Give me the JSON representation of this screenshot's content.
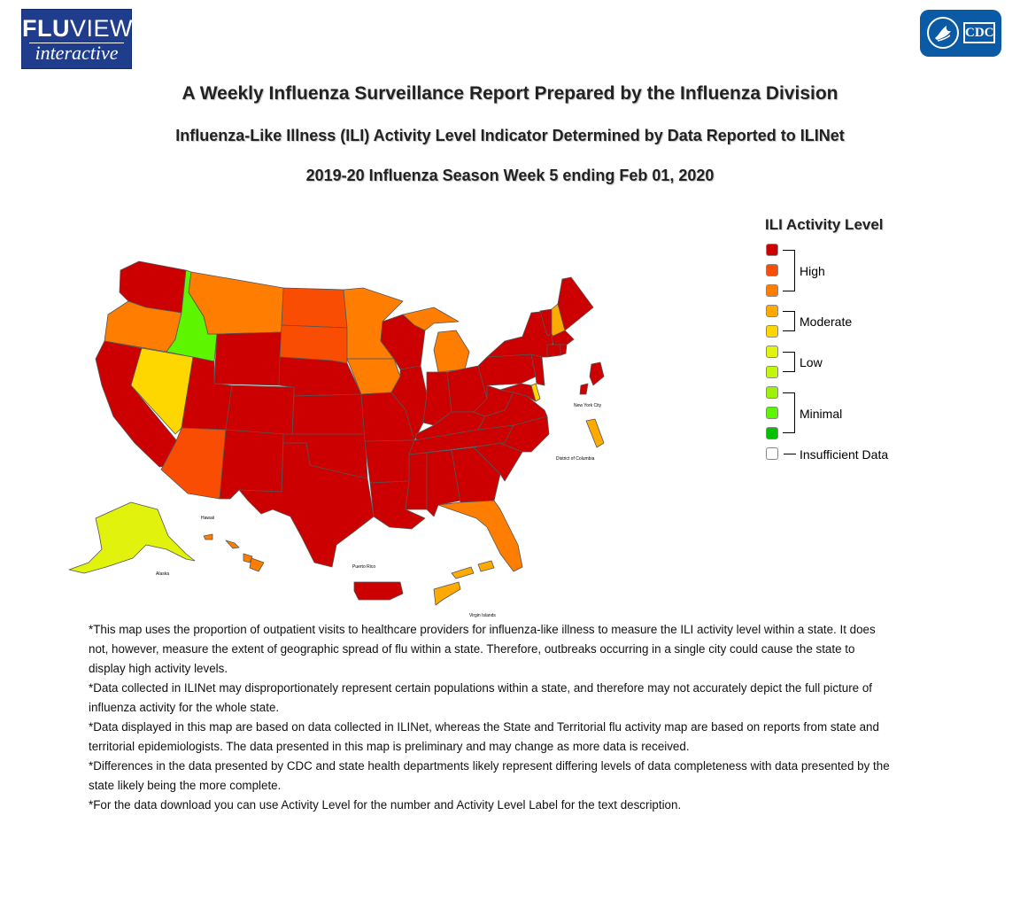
{
  "header": {
    "logo_line1_bold": "FLU",
    "logo_line1_rest": "VIEW",
    "logo_line2": "interactive",
    "cdc_logo": "CDC"
  },
  "titles": {
    "main": "A Weekly Influenza Surveillance Report Prepared by the Influenza Division",
    "sub": "Influenza-Like Illness (ILI) Activity Level Indicator Determined by Data Reported to ILINet",
    "week": "2019-20 Influenza Season Week 5 ending Feb 01, 2020"
  },
  "legend": {
    "title": "ILI Activity Level",
    "levels": [
      {
        "level": 10,
        "color": "#cc0000"
      },
      {
        "level": 9,
        "color": "#f84d02"
      },
      {
        "level": 8,
        "color": "#ff7d00"
      },
      {
        "level": 7,
        "color": "#ffaa00"
      },
      {
        "level": 6,
        "color": "#ffd700"
      },
      {
        "level": 5,
        "color": "#e1f20c"
      },
      {
        "level": 4,
        "color": "#c4f50c"
      },
      {
        "level": 3,
        "color": "#9ff00a"
      },
      {
        "level": 2,
        "color": "#5df500"
      },
      {
        "level": 1,
        "color": "#00c200"
      }
    ],
    "groups": {
      "high": "High",
      "moderate": "Moderate",
      "low": "Low",
      "minimal": "Minimal",
      "insufficient": "Insufficient Data"
    },
    "insufficient_color": "#ffffff"
  },
  "map": {
    "labels": {
      "new_york_city": "New York City",
      "dc": "District of Columbia",
      "hawaii": "Hawaii",
      "alaska": "Alaska",
      "puerto_rico": "Puerto Rico",
      "virgin_islands": "Virgin Islands"
    },
    "state_levels": {
      "WA": 10,
      "OR": 8,
      "CA": 10,
      "NV": 6,
      "ID": 2,
      "MT": 8,
      "WY": 10,
      "UT": 10,
      "AZ": 9,
      "CO": 10,
      "NM": 10,
      "ND": 9,
      "SD": 9,
      "NE": 10,
      "KS": 10,
      "OK": 10,
      "TX": 10,
      "MN": 8,
      "IA": 8,
      "MO": 10,
      "AR": 10,
      "LA": 10,
      "WI": 10,
      "IL": 10,
      "MI": 8,
      "IN": 10,
      "OH": 10,
      "KY": 10,
      "TN": 10,
      "MS": 10,
      "AL": 10,
      "GA": 10,
      "FL": 8,
      "SC": 10,
      "NC": 10,
      "VA": 10,
      "WV": 10,
      "PA": 10,
      "NY": 10,
      "VT": 10,
      "NH": 7,
      "ME": 10,
      "MA": 10,
      "RI": 10,
      "CT": 10,
      "NJ": 10,
      "DE": 6,
      "MD": 10,
      "AK": 5,
      "HI": 8,
      "PR": 10,
      "VI": 7,
      "NYC": 10,
      "DC": 7
    }
  },
  "notes": [
    "*This map uses the proportion of outpatient visits to healthcare providers for influenza-like illness to measure the ILI activity level within a state. It does not, however, measure the extent of geographic spread of flu within a state. Therefore, outbreaks occurring in a single city could cause the state to display high activity levels.",
    "*Data collected in ILINet may disproportionately represent certain populations within a state, and therefore may not accurately depict the full picture of influenza activity for the whole state.",
    "*Data displayed in this map are based on data collected in ILINet, whereas the State and Territorial flu activity map are based on reports from state and territorial epidemiologists. The data presented in this map is preliminary and may change as more data is received.",
    "*Differences in the data presented by CDC and state health departments likely represent differing levels of data completeness with data presented by the state likely being the more complete.",
    "*For the data download you can use Activity Level for the number and Activity Level Label for the text description."
  ]
}
